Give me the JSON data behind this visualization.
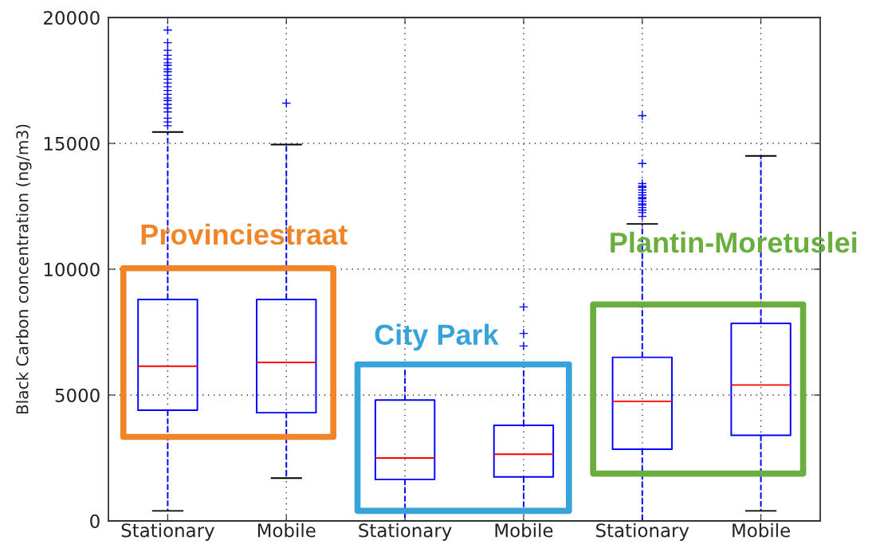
{
  "chart_data": {
    "type": "box",
    "categories": [
      "Stationary",
      "Mobile",
      "Stationary",
      "Mobile",
      "Stationary",
      "Mobile"
    ],
    "ylabel": "Black Carbon concentration (ng/m3)",
    "annotations": [
      "Provinciestraat",
      "City Park",
      "Plantin-Moretuslei"
    ],
    "ylim": [
      0,
      20000
    ],
    "yticks": [
      0,
      5000,
      10000,
      15000,
      20000
    ],
    "grid": true,
    "marker": "cross",
    "line_style": "dashed",
    "series": [
      {
        "color": "#0000ff",
        "boxes": [
          {
            "low": 400,
            "q1": 4400,
            "median": 6150,
            "q3": 8800,
            "high": 15450,
            "outliers": [
              15700,
              15850,
              16000,
              16250,
              16400,
              16550,
              16700,
              16800,
              16950,
              17100,
              17250,
              17400,
              17550,
              17700,
              17850,
              17950,
              18100,
              18200,
              18350,
              18500,
              18700,
              19000,
              19500
            ]
          },
          {
            "low": 1700,
            "q1": 4300,
            "median": 6300,
            "q3": 8800,
            "high": 14950,
            "outliers": [
              16600
            ]
          },
          {
            "low": 0,
            "q1": 1650,
            "median": 2500,
            "q3": 4800,
            "high": 6300
          },
          {
            "low": 400,
            "q1": 1750,
            "median": 2650,
            "q3": 3800,
            "high": 6250,
            "outliers": [
              6950,
              7450,
              8500
            ]
          },
          {
            "low": 0,
            "q1": 2850,
            "median": 4750,
            "q3": 6500,
            "high": 11800,
            "outliers": [
              12100,
              12250,
              12350,
              12450,
              12550,
              12600,
              12700,
              12800,
              12850,
              12950,
              13050,
              13150,
              13250,
              13300,
              13400,
              14200,
              16100
            ]
          },
          {
            "low": 400,
            "q1": 3400,
            "median": 5400,
            "q3": 7850,
            "high": 14500
          }
        ]
      }
    ]
  }
}
